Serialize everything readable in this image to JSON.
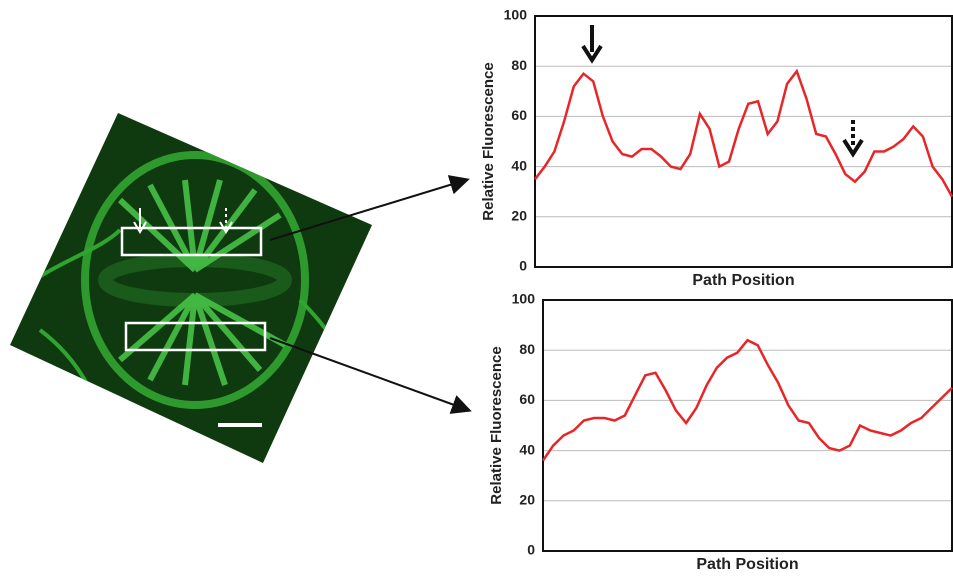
{
  "chart_data": [
    {
      "type": "line",
      "ylabel": "Relative Fluorescence",
      "xlabel": "Path Position",
      "ylim": [
        0,
        100
      ],
      "yticks": [
        0,
        20,
        40,
        60,
        80,
        100
      ],
      "grid": true,
      "series": [
        {
          "color": "#e8262a",
          "values": [
            35,
            40,
            46,
            58,
            72,
            77,
            74,
            60,
            50,
            45,
            44,
            47,
            47,
            44,
            40,
            39,
            45,
            61,
            55,
            40,
            42,
            55,
            65,
            66,
            53,
            58,
            73,
            78,
            67,
            53,
            52,
            45,
            37,
            34,
            38,
            46,
            46,
            48,
            51,
            56,
            52,
            40,
            35,
            28
          ]
        }
      ]
    },
    {
      "type": "line",
      "ylabel": "Relative Fluorescence",
      "xlabel": "Path Position",
      "ylim": [
        0,
        100
      ],
      "yticks": [
        0,
        20,
        40,
        60,
        80,
        100
      ],
      "grid": true,
      "series": [
        {
          "color": "#e8262a",
          "values": [
            36,
            42,
            46,
            48,
            52,
            53,
            53,
            52,
            54,
            62,
            70,
            71,
            64,
            56,
            51,
            57,
            66,
            73,
            77,
            79,
            84,
            82,
            74,
            67,
            58,
            52,
            51,
            45,
            41,
            40,
            42,
            50,
            48,
            47,
            46,
            48,
            51,
            53,
            57,
            61,
            65
          ]
        }
      ]
    }
  ]
}
